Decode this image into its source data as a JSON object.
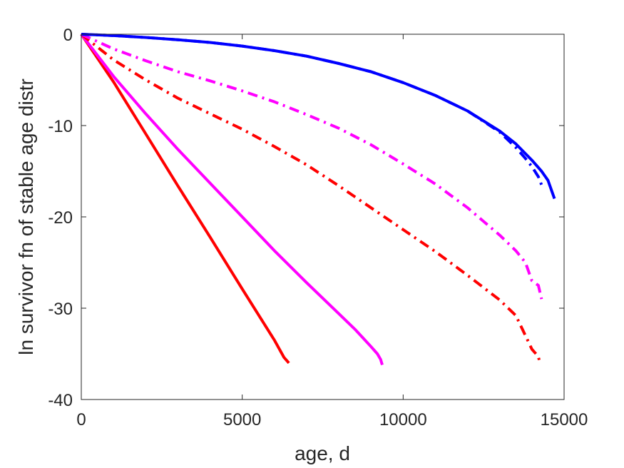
{
  "chart_data": {
    "type": "line",
    "title": "",
    "xlabel": "age, d",
    "ylabel": "ln survivor fn of stable age distr",
    "xlim": [
      0,
      15000
    ],
    "ylim": [
      -40,
      0
    ],
    "xticks": [
      0,
      5000,
      10000,
      15000
    ],
    "xtick_labels": [
      "0",
      "5000",
      "10000",
      "15000"
    ],
    "yticks": [
      0,
      -10,
      -20,
      -30,
      -40
    ],
    "ytick_labels": [
      "0",
      "-10",
      "-20",
      "-30",
      "-40"
    ],
    "grid": false,
    "legend": "none",
    "series": [
      {
        "color": "#ff0000",
        "style": "solid",
        "x": [
          0,
          1000,
          2000,
          3000,
          4000,
          5000,
          6000,
          6300,
          6450
        ],
        "y": [
          0,
          -5.2,
          -10.9,
          -16.6,
          -22.2,
          -27.9,
          -33.5,
          -35.4,
          -36.0
        ]
      },
      {
        "color": "#ff00ff",
        "style": "solid",
        "x": [
          0,
          1000,
          2000,
          3000,
          4000,
          5000,
          6000,
          7000,
          8000,
          8500,
          9000,
          9200,
          9300,
          9350
        ],
        "y": [
          0,
          -4.6,
          -8.7,
          -12.6,
          -16.3,
          -20.0,
          -23.7,
          -27.2,
          -30.6,
          -32.3,
          -34.2,
          -35.0,
          -35.6,
          -36.2
        ]
      },
      {
        "color": "#ff0000",
        "style": "dashdot",
        "x": [
          0,
          1000,
          2000,
          3000,
          4000,
          5000,
          6000,
          7000,
          8000,
          9000,
          10000,
          11000,
          12000,
          13000,
          13500,
          13800,
          14000,
          14200,
          14250
        ],
        "y": [
          0,
          -2.8,
          -5.0,
          -7.0,
          -8.7,
          -10.4,
          -12.3,
          -14.3,
          -16.6,
          -19.0,
          -21.4,
          -23.8,
          -26.4,
          -29.1,
          -30.8,
          -33.0,
          -34.5,
          -35.3,
          -36.0
        ]
      },
      {
        "color": "#ff00ff",
        "style": "dashdot",
        "x": [
          0,
          1000,
          2000,
          3000,
          4000,
          5000,
          6000,
          7000,
          8000,
          9000,
          10000,
          11000,
          12000,
          13000,
          13500,
          13800,
          14000,
          14200,
          14300
        ],
        "y": [
          0,
          -1.6,
          -2.9,
          -4.1,
          -5.1,
          -6.2,
          -7.4,
          -8.8,
          -10.3,
          -12.1,
          -14.2,
          -16.4,
          -19.0,
          -22.0,
          -23.7,
          -25.0,
          -27.0,
          -27.5,
          -29.0
        ]
      },
      {
        "color": "#0000ff",
        "style": "solid",
        "x": [
          0,
          1000,
          2000,
          3000,
          4000,
          5000,
          6000,
          7000,
          8000,
          9000,
          10000,
          11000,
          12000,
          13000,
          13500,
          14000,
          14300,
          14500,
          14700
        ],
        "y": [
          0,
          -0.15,
          -0.35,
          -0.6,
          -0.9,
          -1.3,
          -1.8,
          -2.4,
          -3.2,
          -4.1,
          -5.3,
          -6.7,
          -8.4,
          -10.6,
          -12.0,
          -13.8,
          -15.0,
          -16.0,
          -18.0
        ]
      },
      {
        "color": "#0000ff",
        "style": "dashdot",
        "x": [
          0,
          1000,
          2000,
          3000,
          4000,
          5000,
          6000,
          7000,
          8000,
          9000,
          10000,
          11000,
          12000,
          13000,
          13500,
          13800,
          14000,
          14200,
          14300
        ],
        "y": [
          0,
          -0.15,
          -0.35,
          -0.6,
          -0.9,
          -1.3,
          -1.8,
          -2.4,
          -3.2,
          -4.1,
          -5.3,
          -6.7,
          -8.4,
          -10.7,
          -12.4,
          -13.6,
          -14.5,
          -15.6,
          -16.5
        ]
      }
    ]
  }
}
